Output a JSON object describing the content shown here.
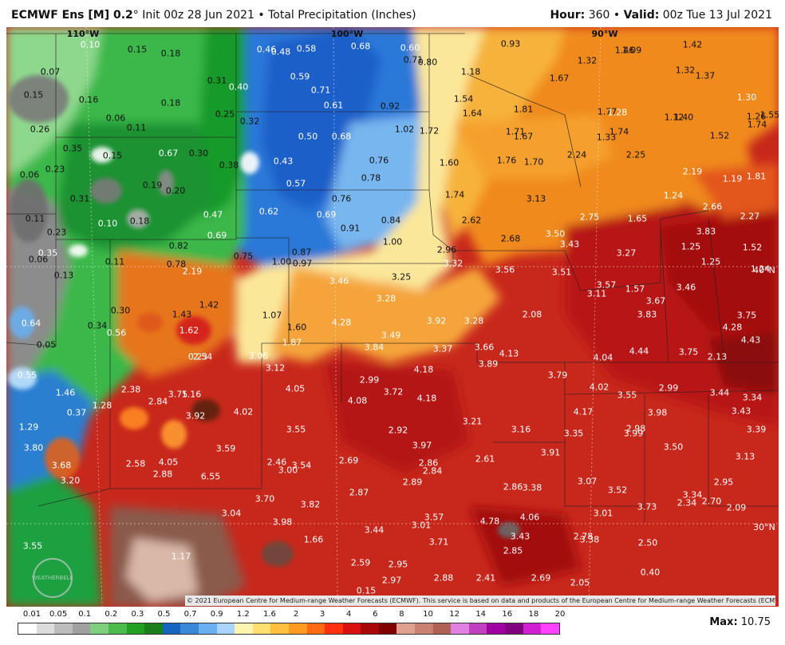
{
  "header": {
    "model": "ECMWF Ens [M] 0.2",
    "deg": "°",
    "init": " Init 00z 28 Jun 2021",
    "sep": " • ",
    "field": "Total Precipitation (Inches)",
    "hour_label": "Hour:",
    "hour": " 360",
    "valid_label": "Valid:",
    "valid": " 00z Tue 13 Jul 2021"
  },
  "meridians": [
    "110°W",
    "100°W",
    "90°W"
  ],
  "parallels": [
    "40°N",
    "30°N"
  ],
  "values": [
    "0.10",
    "0.15",
    "0.18",
    "0.07",
    "0.15",
    "0.16",
    "0.18",
    "0.31",
    "0.40",
    "0.46",
    "0.48",
    "0.58",
    "0.68",
    "0.60",
    "0.71",
    "0.80",
    "0.59",
    "0.71",
    "0.61",
    "0.92",
    "0.25",
    "0.06",
    "0.11",
    "0.32",
    "0.26",
    "0.35",
    "0.15",
    "0.67",
    "0.30",
    "0.38",
    "0.50",
    "0.68",
    "0.43",
    "1.02",
    "0.76",
    "0.06",
    "0.23",
    "0.19",
    "0.20",
    "0.57",
    "0.78",
    "0.31",
    "0.76",
    "0.11",
    "0.10",
    "0.18",
    "0.47",
    "0.62",
    "0.69",
    "0.91",
    "0.84",
    "0.23",
    "0.69",
    "1.00",
    "0.35",
    "0.06",
    "0.82",
    "0.11",
    "0.78",
    "0.75",
    "1.00",
    "0.87",
    "0.97",
    "0.13",
    "2.19",
    "1.42",
    "0.30",
    "1.43",
    "1.07",
    "0.64",
    "0.34",
    "0.56",
    "1.62",
    "1.60",
    "0.05",
    "1.87",
    "0.93",
    "1.18",
    "1.32",
    "1.46",
    "1.09",
    "1.42",
    "1.32",
    "1.37",
    "1.67",
    "1.54",
    "1.64",
    "1.81",
    "1.77",
    "1.28",
    "1.12",
    "1.40",
    "1.30",
    "1.55",
    "1.26",
    "1.74",
    "1.72",
    "1.71",
    "1.67",
    "1.74",
    "1.33",
    "1.52",
    "1.60",
    "1.76",
    "1.70",
    "2.24",
    "2.25",
    "2.19",
    "1.19",
    "1.81",
    "1.74",
    "1.24",
    "3.13",
    "2.62",
    "2.66",
    "2.75",
    "1.65",
    "2.27",
    "2.68",
    "3.50",
    "3.43",
    "3.83",
    "3.27",
    "1.25",
    "1.52",
    "2.96",
    "3.32",
    "3.56",
    "3.51",
    "1.25",
    "1.24",
    "3.46",
    "3.25",
    "3.57",
    "1.57",
    "3.46",
    "3.28",
    "3.11",
    "3.67",
    "3.83",
    "2.08",
    "3.75",
    "4.28",
    "3.92",
    "3.28",
    "4.28",
    "3.49",
    "4.43",
    "3.84",
    "3.37",
    "3.66",
    "4.13",
    "4.44",
    "3.75",
    "2.13",
    "2.54",
    "3.06",
    "3.12",
    "3.89",
    "4.04",
    "2.99",
    "4.18",
    "4.05",
    "4.08",
    "3.44",
    "2.99",
    "4.02",
    "3.79",
    "3.72",
    "4.18",
    "3.55",
    "3.34",
    "3.92",
    "4.17",
    "3.98",
    "3.43",
    "3.21",
    "2.92",
    "3.16",
    "3.35",
    "3.99",
    "3.39",
    "4.02",
    "3.55",
    "3.97",
    "2.98",
    "3.50",
    "3.91",
    "3.13",
    "3.59",
    "2.61",
    "2.86",
    "2.69",
    "2.46",
    "3.54",
    "3.00",
    "2.84",
    "2.89",
    "3.07",
    "2.95",
    "2.86",
    "3.38",
    "3.52",
    "3.34",
    "2.70",
    "2.09",
    "2.87",
    "3.70",
    "3.82",
    "3.73",
    "2.34",
    "3.01",
    "3.98",
    "3.01",
    "4.06",
    "3.57",
    "4.78",
    "3.44",
    "3.43",
    "3.71",
    "2.78",
    "3.38",
    "2.50",
    "2.85",
    "2.59",
    "2.95",
    "2.97",
    "2.88",
    "2.41",
    "2.69",
    "2.05",
    "0.40",
    "0.15",
    "0.55",
    "1.46",
    "1.28",
    "2.38",
    "2.84",
    "3.75",
    "1.16",
    "0.23",
    "0.37",
    "1.29",
    "3.80",
    "3.68",
    "2.58",
    "4.05",
    "3.20",
    "2.88",
    "6.55",
    "3.04",
    "1.17",
    "1.66",
    "3.55"
  ],
  "credit": "© 2021 European Centre for Medium-range Weather Forecasts (ECMWF). This service is based on data and products of the European Centre for Medium-range Weather Forecasts (ECMWF).",
  "watermark": "WEATHERBELL",
  "legend": {
    "ticks": [
      "0.01",
      "0.05",
      "0.1",
      "0.2",
      "0.3",
      "0.5",
      "0.7",
      "0.9",
      "1.2",
      "1.6",
      "2",
      "3",
      "4",
      "6",
      "8",
      "10",
      "12",
      "14",
      "16",
      "18",
      "20"
    ],
    "colors": [
      "#ffffff",
      "#dcdcdc",
      "#bdbdbd",
      "#a0a0a0",
      "#7ecf7e",
      "#4cbb4c",
      "#22a022",
      "#1a7f1a",
      "#1565c0",
      "#3c88d8",
      "#6aaff0",
      "#a8d4ff",
      "#fff5b0",
      "#ffdf70",
      "#ffc040",
      "#ff9a20",
      "#ff6a10",
      "#ff3010",
      "#d81010",
      "#a80808",
      "#800000",
      "#e0a090",
      "#c88070",
      "#b06050",
      "#e080e0",
      "#c040c0",
      "#a000a0",
      "#800080",
      "#d020d0",
      "#ff40ff"
    ]
  },
  "max_label": "Max:",
  "max_value": " 10.75"
}
